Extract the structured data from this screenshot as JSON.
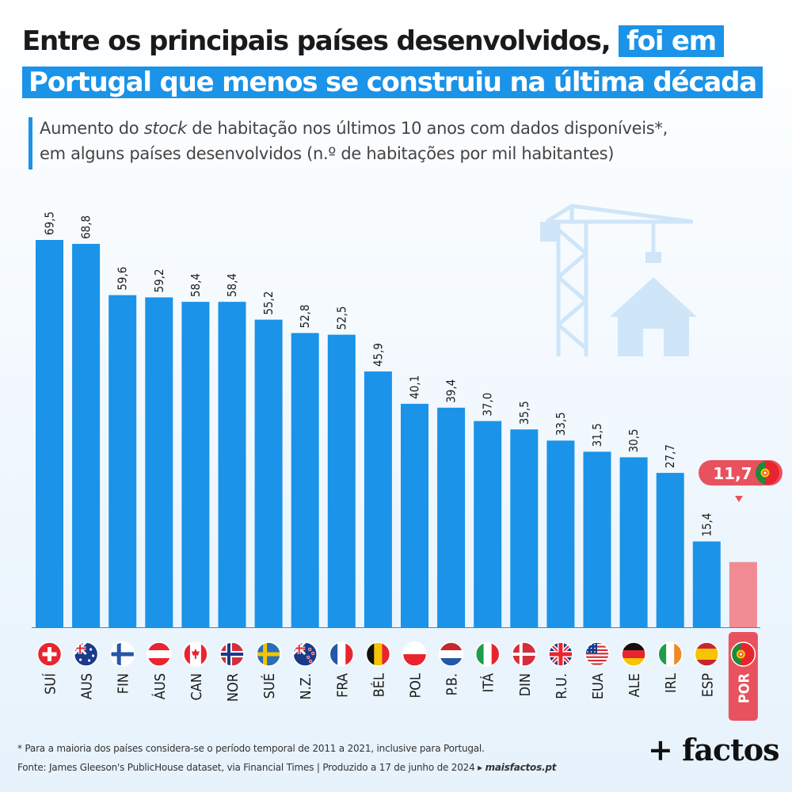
{
  "title": {
    "line1_prefix": "Entre os principais países desenvolvidos,",
    "line1_highlight": "foi em",
    "line2_highlight": "Portugal que menos se construiu na última década"
  },
  "subtitle": {
    "part1": "Aumento do ",
    "italic": "stock",
    "part2": " de habitação nos últimos 10 anos com dados disponíveis*,",
    "line2": "em alguns países desenvolvidos (n.º de habitações por mil habitantes)"
  },
  "colors": {
    "bar": "#1a93e8",
    "highlight_bar": "#f08b94",
    "highlight_badge": "#e8525e",
    "crane_icon": "#cfe5f8"
  },
  "icons": [
    "crane-house-icon",
    "flag-icons"
  ],
  "chart_data": {
    "type": "bar",
    "categories": [
      "SUÍ",
      "AUS",
      "FIN",
      "ÁUS",
      "CAN",
      "NOR",
      "SUÉ",
      "N.Z.",
      "FRA",
      "BÉL",
      "POL",
      "P.B.",
      "ITÁ",
      "DIN",
      "R.U.",
      "EUA",
      "ALE",
      "IRL",
      "ESP",
      "POR"
    ],
    "values": [
      69.5,
      68.8,
      59.6,
      59.2,
      58.4,
      58.4,
      55.2,
      52.8,
      52.5,
      45.9,
      40.1,
      39.4,
      37.0,
      35.5,
      33.5,
      31.5,
      30.5,
      27.7,
      15.4,
      11.7
    ],
    "labels": [
      "69,5",
      "68,8",
      "59,6",
      "59,2",
      "58,4",
      "58,4",
      "55,2",
      "52,8",
      "52,5",
      "45,9",
      "40,1",
      "39,4",
      "37,0",
      "35,5",
      "33,5",
      "31,5",
      "30,5",
      "27,7",
      "15,4",
      "11,7"
    ],
    "highlight": "POR",
    "flags": [
      "switzerland",
      "australia",
      "finland",
      "austria",
      "canada",
      "norway",
      "sweden",
      "new-zealand",
      "france",
      "belgium",
      "poland",
      "netherlands",
      "italy",
      "denmark",
      "united-kingdom",
      "usa",
      "germany",
      "ireland",
      "spain",
      "portugal"
    ],
    "ylim": [
      0,
      70
    ],
    "grid": false,
    "legend": "none"
  },
  "footer": {
    "footnote": "* Para a maioria dos países considera-se o período temporal de 2011 a 2021, inclusive para Portugal.",
    "source_prefix": "Fonte: James Gleeson's PublicHouse dataset, via Financial Times  |  Produzido a 17 de junho de 2024 ▸ ",
    "source_site": "maisfactos.pt"
  },
  "logo": "+ factos"
}
